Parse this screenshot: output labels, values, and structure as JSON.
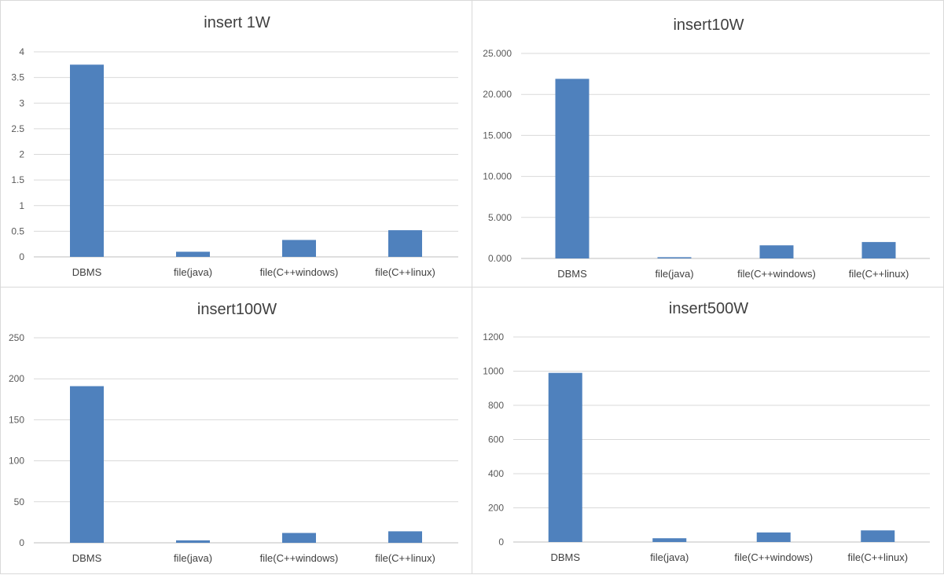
{
  "colors": {
    "bar": "#4f81bd",
    "grid": "#d9d9d9",
    "text": "#404040"
  },
  "chart_data": [
    {
      "type": "bar",
      "title": "insert 1W",
      "categories": [
        "DBMS",
        "file(java)",
        "file(C++windows)",
        "file(C++linux)"
      ],
      "values": [
        3.75,
        0.1,
        0.33,
        0.52
      ],
      "ylim": [
        0,
        4
      ],
      "yticks": [
        0,
        0.5,
        1,
        1.5,
        2,
        2.5,
        3,
        3.5,
        4
      ],
      "ytick_labels": [
        "0",
        "0.5",
        "1",
        "1.5",
        "2",
        "2.5",
        "3",
        "3.5",
        "4"
      ],
      "xlabel": "",
      "ylabel": "",
      "grid": true,
      "legend": "none"
    },
    {
      "type": "bar",
      "title": "insert10W",
      "categories": [
        "DBMS",
        "file(java)",
        "file(C++windows)",
        "file(C++linux)"
      ],
      "values": [
        21.9,
        0.15,
        1.6,
        2.0
      ],
      "ylim": [
        0,
        25
      ],
      "yticks": [
        0,
        5,
        10,
        15,
        20,
        25
      ],
      "ytick_labels": [
        "0.000",
        "5.000",
        "10.000",
        "15.000",
        "20.000",
        "25.000"
      ],
      "xlabel": "",
      "ylabel": "",
      "grid": true,
      "legend": "none"
    },
    {
      "type": "bar",
      "title": "insert100W",
      "categories": [
        "DBMS",
        "file(java)",
        "file(C++windows)",
        "file(C++linux)"
      ],
      "values": [
        191,
        3,
        12,
        14
      ],
      "ylim": [
        0,
        250
      ],
      "yticks": [
        0,
        50,
        100,
        150,
        200,
        250
      ],
      "ytick_labels": [
        "0",
        "50",
        "100",
        "150",
        "200",
        "250"
      ],
      "xlabel": "",
      "ylabel": "",
      "grid": true,
      "legend": "none"
    },
    {
      "type": "bar",
      "title": "insert500W",
      "categories": [
        "DBMS",
        "file(java)",
        "file(C++windows)",
        "file(C++linux)"
      ],
      "values": [
        990,
        22,
        56,
        68
      ],
      "ylim": [
        0,
        1200
      ],
      "yticks": [
        0,
        200,
        400,
        600,
        800,
        1000,
        1200
      ],
      "ytick_labels": [
        "0",
        "200",
        "400",
        "600",
        "800",
        "1000",
        "1200"
      ],
      "xlabel": "",
      "ylabel": "",
      "grid": true,
      "legend": "none"
    }
  ]
}
